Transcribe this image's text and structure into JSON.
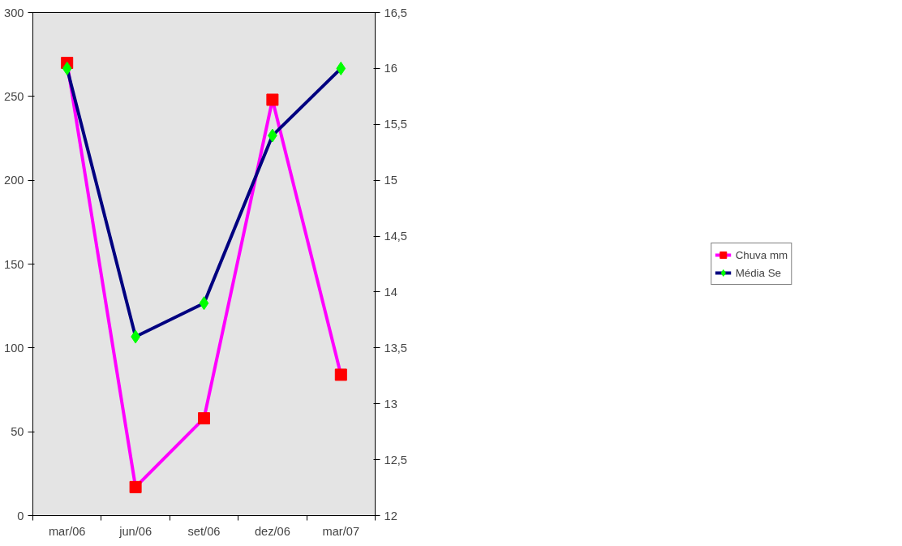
{
  "chart_data": {
    "type": "line",
    "categories": [
      "mar/06",
      "jun/06",
      "set/06",
      "dez/06",
      "mar/07"
    ],
    "series": [
      {
        "name": "Chuva mm",
        "color": "#ff00ff",
        "colors": [
          "#ff0000",
          "#ff0000",
          "#ff0000",
          "#ff0000",
          "#ff0000"
        ],
        "marker": "square",
        "values": [
          270,
          17,
          58,
          248,
          84
        ]
      },
      {
        "name": "Média Se",
        "color": "#000080",
        "colors": [
          "#00ff00",
          "#00ff00",
          "#00ff00",
          "#00ff00",
          "#00ff00"
        ],
        "marker": "diamond",
        "axis": "y2",
        "values": [
          16.0,
          13.6,
          13.9,
          15.4,
          16.0
        ]
      }
    ],
    "ylim": [
      0,
      300
    ],
    "yticks": [
      0,
      50,
      100,
      150,
      200,
      250,
      300
    ],
    "y2lim": [
      12,
      16.5
    ],
    "y2ticks": [
      12,
      {
        "value": 12.5,
        "label": "12,5"
      },
      13,
      {
        "value": 13.5,
        "label": "13,5"
      },
      14,
      {
        "value": 14.5,
        "label": "14,5"
      },
      15,
      {
        "value": 15.5,
        "label": "15,5"
      },
      16,
      {
        "value": 16.5,
        "label": "16,5"
      }
    ],
    "grid": false,
    "legend": "right",
    "line_style": "solid"
  }
}
